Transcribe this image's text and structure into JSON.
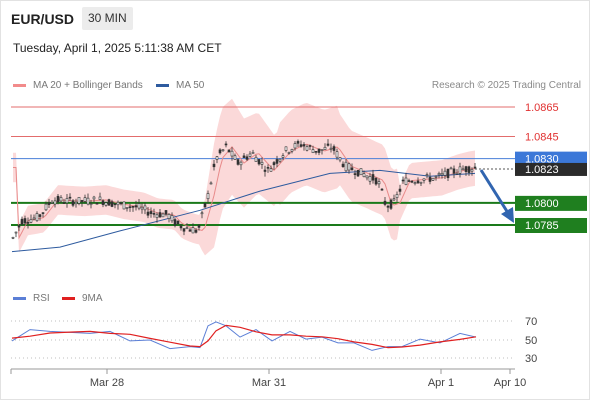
{
  "header": {
    "symbol": "EUR/USD",
    "timeframe": "30 MIN",
    "datetime": "Tuesday, April 1, 2025 5:11:38 AM CET"
  },
  "legend": [
    {
      "label": "MA 20 + Bollinger Bands",
      "color": "#f28b8b"
    },
    {
      "label": "MA 50",
      "color": "#2e5b9f"
    }
  ],
  "credit": "Research © 2025 Trading Central",
  "levels": [
    {
      "label": "1.0865",
      "kind": "resistance",
      "color": "#e36c6c"
    },
    {
      "label": "1.0845",
      "kind": "resistance",
      "color": "#e36c6c"
    },
    {
      "label": "1.0830",
      "kind": "pivot",
      "color": "#4a7fd8"
    },
    {
      "label": "1.0800",
      "kind": "support",
      "color": "#1a7a1a"
    },
    {
      "label": "1.0785",
      "kind": "support",
      "color": "#1a7a1a"
    }
  ],
  "last_price": "1.0823",
  "rsi_legend": [
    {
      "label": "RSI",
      "color": "#5b7fd6"
    },
    {
      "label": "9MA",
      "color": "#e02020"
    }
  ],
  "rsi_levels": [
    "70",
    "50",
    "30"
  ],
  "xaxis": [
    "Mar 28",
    "Mar 31",
    "Apr 1",
    "Apr 10"
  ],
  "chart_data": {
    "type": "candlestick",
    "series": [
      {
        "name": "MA 20 + Bollinger Bands"
      },
      {
        "name": "MA 50"
      },
      {
        "name": "RSI"
      },
      {
        "name": "9MA"
      }
    ],
    "price_levels": [
      1.0865,
      1.0845,
      1.083,
      1.08,
      1.0785
    ],
    "last_price": 1.0823,
    "rsi_levels": [
      70,
      50,
      30
    ],
    "x_ticks": [
      "Mar 28",
      "Mar 31",
      "Apr 1",
      "Apr 10"
    ]
  }
}
